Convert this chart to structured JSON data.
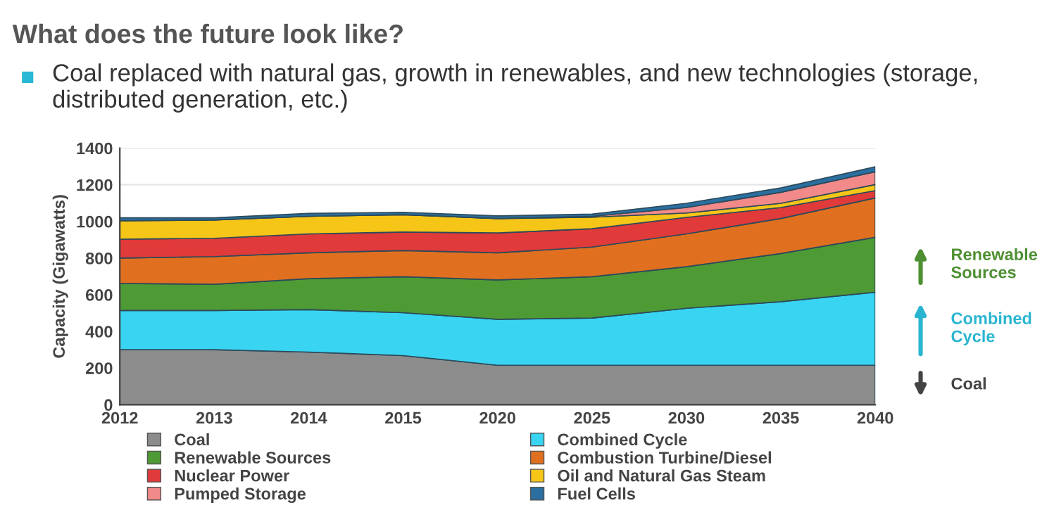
{
  "chart_data": {
    "type": "area",
    "stacked": true,
    "title": "What does the future look like?",
    "subtitle": "Coal replaced with natural gas, growth in renewables, and new technologies (storage, distributed generation, etc.)",
    "ylabel": "Capacity (Gigawatts)",
    "categories": [
      "2012",
      "2013",
      "2014",
      "2015",
      "2020",
      "2025",
      "2030",
      "2035",
      "2040"
    ],
    "series": [
      {
        "name": "Coal",
        "color": "#8c8c8c",
        "values": [
          300,
          300,
          287,
          268,
          215,
          215,
          215,
          215,
          215
        ]
      },
      {
        "name": "Combined Cycle",
        "color": "#38d4f2",
        "values": [
          214,
          214,
          232,
          234,
          251,
          258,
          311,
          347,
          399
        ]
      },
      {
        "name": "Renewable Sources",
        "color": "#4e9a35",
        "values": [
          148,
          143,
          169,
          196,
          215,
          225,
          227,
          263,
          299
        ]
      },
      {
        "name": "Combustion Turbine/Diesel",
        "color": "#e07020",
        "values": [
          138,
          151,
          141,
          143,
          148,
          162,
          179,
          191,
          215
        ]
      },
      {
        "name": "Nuclear Power",
        "color": "#e03a3a",
        "values": [
          103,
          100,
          103,
          101,
          108,
          100,
          90,
          60,
          40
        ]
      },
      {
        "name": "Oil and Natural Gas Steam",
        "color": "#f5c518",
        "values": [
          101,
          100,
          96,
          95,
          79,
          63,
          24,
          23,
          33
        ]
      },
      {
        "name": "Pumped Storage",
        "color": "#f28a8a",
        "values": [
          0,
          0,
          0,
          0,
          0,
          5,
          30,
          60,
          70
        ]
      },
      {
        "name": "Fuel Cells",
        "color": "#2a6fa0",
        "values": [
          16,
          12,
          16,
          13,
          14,
          12,
          23,
          24,
          27
        ]
      }
    ],
    "ylim": [
      0,
      1400
    ],
    "yticks": [
      0,
      200,
      400,
      600,
      800,
      1000,
      1200,
      1400
    ],
    "grid": "y",
    "legend": "bottom",
    "annotations": [
      "Renewable Sources",
      "Combined Cycle",
      "Coal"
    ]
  }
}
